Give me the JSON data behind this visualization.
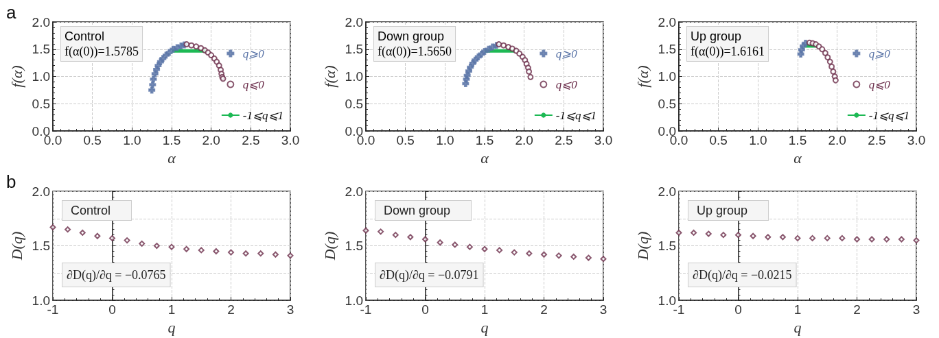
{
  "chart_data": [
    {
      "type": "scatter",
      "title": "a",
      "xlabel": "α",
      "ylabel": "f(α)",
      "annotations": [
        "Control",
        "f(α(0))=1.5785"
      ],
      "xlim": [
        0,
        3
      ],
      "ylim": [
        0,
        2
      ],
      "xticks": [
        {
          "value": 0,
          "label": "0.0"
        },
        {
          "value": 0.5,
          "label": "0.5"
        },
        {
          "value": 1,
          "label": "1.0"
        },
        {
          "value": 1.5,
          "label": "1.5"
        },
        {
          "value": 2,
          "label": "2.0"
        },
        {
          "value": 2.5,
          "label": "2.5"
        },
        {
          "value": 3,
          "label": "3.0"
        }
      ],
      "yticks": [
        {
          "value": 0,
          "label": "0.0"
        },
        {
          "value": 0.5,
          "label": "0.5"
        },
        {
          "value": 1,
          "label": "1.0"
        },
        {
          "value": 1.5,
          "label": "1.5"
        },
        {
          "value": 2,
          "label": "2.0"
        }
      ],
      "grid": true,
      "legend": "right",
      "series": [
        {
          "name": "q⩾0",
          "color": "#5b75a8",
          "marker": "cross",
          "x": [
            1.25,
            1.26,
            1.27,
            1.29,
            1.31,
            1.33,
            1.36,
            1.39,
            1.43,
            1.47,
            1.52,
            1.57,
            1.62,
            1.66
          ],
          "values": [
            0.75,
            0.85,
            0.95,
            1.05,
            1.13,
            1.2,
            1.27,
            1.33,
            1.39,
            1.44,
            1.5,
            1.53,
            1.56,
            1.58
          ]
        },
        {
          "name": "q⩽0",
          "color": "#6b2d4a",
          "marker": "circle",
          "x": [
            1.69,
            1.75,
            1.81,
            1.87,
            1.92,
            1.96,
            2.0,
            2.04,
            2.07,
            2.1,
            2.12,
            2.13,
            2.14,
            2.15
          ],
          "values": [
            1.59,
            1.57,
            1.55,
            1.52,
            1.48,
            1.44,
            1.39,
            1.33,
            1.27,
            1.2,
            1.12,
            1.05,
            0.99,
            0.96
          ]
        },
        {
          "name": "-1⩽q⩽1",
          "type": "line",
          "color": "#1db954",
          "marker": "none",
          "line_style": "solid",
          "x": [
            1.5,
            1.93
          ],
          "values": [
            1.47,
            1.47
          ]
        }
      ]
    },
    {
      "type": "scatter",
      "xlabel": "α",
      "ylabel": "f(α)",
      "annotations": [
        "Down group",
        "f(α(0))=1.5650"
      ],
      "xlim": [
        0,
        3
      ],
      "ylim": [
        0,
        2
      ],
      "xticks": [
        {
          "value": 0,
          "label": "0.0"
        },
        {
          "value": 0.5,
          "label": "0.5"
        },
        {
          "value": 1,
          "label": "1.0"
        },
        {
          "value": 1.5,
          "label": "1.5"
        },
        {
          "value": 2,
          "label": "2.0"
        },
        {
          "value": 2.5,
          "label": "2.5"
        },
        {
          "value": 3,
          "label": "3.0"
        }
      ],
      "yticks": [
        {
          "value": 0,
          "label": "0.0"
        },
        {
          "value": 0.5,
          "label": "0.5"
        },
        {
          "value": 1,
          "label": "1.0"
        },
        {
          "value": 1.5,
          "label": "1.5"
        },
        {
          "value": 2,
          "label": "2.0"
        }
      ],
      "grid": true,
      "legend": "right",
      "series": [
        {
          "name": "q⩾0",
          "color": "#5b75a8",
          "marker": "cross",
          "x": [
            1.26,
            1.27,
            1.28,
            1.3,
            1.32,
            1.35,
            1.38,
            1.42,
            1.46,
            1.5,
            1.55,
            1.6,
            1.65
          ],
          "values": [
            0.87,
            0.95,
            1.02,
            1.1,
            1.17,
            1.24,
            1.3,
            1.36,
            1.41,
            1.46,
            1.5,
            1.54,
            1.57
          ]
        },
        {
          "name": "q⩽0",
          "color": "#6b2d4a",
          "marker": "circle",
          "x": [
            1.68,
            1.74,
            1.8,
            1.85,
            1.9,
            1.94,
            1.98,
            2.01,
            2.03,
            2.05,
            2.06,
            2.08
          ],
          "values": [
            1.59,
            1.57,
            1.54,
            1.51,
            1.47,
            1.42,
            1.36,
            1.3,
            1.23,
            1.16,
            1.09,
            0.99
          ]
        },
        {
          "name": "-1⩽q⩽1",
          "type": "line",
          "color": "#1db954",
          "marker": "none",
          "line_style": "solid",
          "x": [
            1.5,
            1.88
          ],
          "values": [
            1.47,
            1.47
          ]
        }
      ]
    },
    {
      "type": "scatter",
      "xlabel": "α",
      "ylabel": "f(α)",
      "annotations": [
        "Up group",
        "f(α(0))=1.6161"
      ],
      "xlim": [
        0,
        3
      ],
      "ylim": [
        0,
        2
      ],
      "xticks": [
        {
          "value": 0,
          "label": "0.0"
        },
        {
          "value": 0.5,
          "label": "0.5"
        },
        {
          "value": 1,
          "label": "1.0"
        },
        {
          "value": 1.5,
          "label": "1.5"
        },
        {
          "value": 2,
          "label": "2.0"
        },
        {
          "value": 2.5,
          "label": "2.5"
        },
        {
          "value": 3,
          "label": "3.0"
        }
      ],
      "yticks": [
        {
          "value": 0,
          "label": "0.0"
        },
        {
          "value": 0.5,
          "label": "0.5"
        },
        {
          "value": 1,
          "label": "1.0"
        },
        {
          "value": 1.5,
          "label": "1.5"
        },
        {
          "value": 2,
          "label": "2.0"
        }
      ],
      "grid": true,
      "legend": "right",
      "series": [
        {
          "name": "q⩾0",
          "color": "#5b75a8",
          "marker": "cross",
          "x": [
            1.54,
            1.55,
            1.57,
            1.6
          ],
          "values": [
            1.41,
            1.49,
            1.56,
            1.61
          ]
        },
        {
          "name": "q⩽0",
          "color": "#6b2d4a",
          "marker": "circle",
          "x": [
            1.65,
            1.69,
            1.73,
            1.77,
            1.81,
            1.85,
            1.88,
            1.91,
            1.93,
            1.95,
            1.97,
            1.98
          ],
          "values": [
            1.62,
            1.61,
            1.59,
            1.55,
            1.5,
            1.43,
            1.35,
            1.27,
            1.18,
            1.09,
            1.0,
            0.93
          ]
        },
        {
          "name": "-1⩽q⩽1",
          "type": "line",
          "color": "#1db954",
          "marker": "none",
          "line_style": "solid",
          "x": [
            1.58,
            1.75
          ],
          "values": [
            1.56,
            1.56
          ]
        }
      ]
    },
    {
      "type": "scatter",
      "title": "b",
      "xlabel": "q",
      "ylabel": "D(q)",
      "annotations": [
        "Control",
        "∂D(q)/∂q = −0.0765"
      ],
      "xlim": [
        -1,
        3
      ],
      "ylim": [
        1,
        2
      ],
      "xticks": [
        -1,
        0,
        1,
        2,
        3
      ],
      "yticks": [
        {
          "value": 1,
          "label": "1.0"
        },
        {
          "value": 1.25,
          "label": null
        },
        {
          "value": 1.5,
          "label": "1.5"
        },
        {
          "value": 1.75,
          "label": null
        },
        {
          "value": 2,
          "label": "2.0"
        }
      ],
      "grid": true,
      "legend": false,
      "series": [
        {
          "color": "#6b2d4a",
          "marker": "diamond",
          "x": [
            -1,
            -0.75,
            -0.5,
            -0.25,
            0,
            0.25,
            0.5,
            0.75,
            1,
            1.25,
            1.5,
            1.75,
            2,
            2.25,
            2.5,
            2.75,
            3
          ],
          "values": [
            1.67,
            1.65,
            1.62,
            1.59,
            1.57,
            1.55,
            1.52,
            1.5,
            1.49,
            1.47,
            1.46,
            1.45,
            1.44,
            1.43,
            1.43,
            1.42,
            1.41
          ]
        }
      ]
    },
    {
      "type": "scatter",
      "xlabel": "q",
      "ylabel": "D(q)",
      "annotations": [
        "Down group",
        "∂D(q)/∂q = −0.0791"
      ],
      "xlim": [
        -1,
        3
      ],
      "ylim": [
        1,
        2
      ],
      "xticks": [
        -1,
        0,
        1,
        2,
        3
      ],
      "yticks": [
        {
          "value": 1,
          "label": "1.0"
        },
        {
          "value": 1.25,
          "label": null
        },
        {
          "value": 1.5,
          "label": "1.5"
        },
        {
          "value": 1.75,
          "label": null
        },
        {
          "value": 2,
          "label": "2.0"
        }
      ],
      "grid": true,
      "legend": false,
      "series": [
        {
          "color": "#6b2d4a",
          "marker": "diamond",
          "x": [
            -1,
            -0.75,
            -0.5,
            -0.25,
            0,
            0.25,
            0.5,
            0.75,
            1,
            1.25,
            1.5,
            1.75,
            2,
            2.25,
            2.5,
            2.75,
            3
          ],
          "values": [
            1.64,
            1.63,
            1.6,
            1.58,
            1.56,
            1.53,
            1.51,
            1.49,
            1.47,
            1.46,
            1.44,
            1.43,
            1.42,
            1.41,
            1.4,
            1.39,
            1.38
          ]
        }
      ]
    },
    {
      "type": "scatter",
      "xlabel": "q",
      "ylabel": "D(q)",
      "annotations": [
        "Up group",
        "∂D(q)/∂q = −0.0215"
      ],
      "xlim": [
        -1,
        3
      ],
      "ylim": [
        1,
        2
      ],
      "xticks": [
        -1,
        0,
        1,
        2,
        3
      ],
      "yticks": [
        {
          "value": 1,
          "label": "1.0"
        },
        {
          "value": 1.25,
          "label": null
        },
        {
          "value": 1.5,
          "label": "1.5"
        },
        {
          "value": 1.75,
          "label": null
        },
        {
          "value": 2,
          "label": "2.0"
        }
      ],
      "grid": true,
      "legend": false,
      "series": [
        {
          "color": "#6b2d4a",
          "marker": "diamond",
          "x": [
            -1,
            -0.75,
            -0.5,
            -0.25,
            0,
            0.25,
            0.5,
            0.75,
            1,
            1.25,
            1.5,
            1.75,
            2,
            2.25,
            2.5,
            2.75,
            3
          ],
          "values": [
            1.62,
            1.62,
            1.61,
            1.6,
            1.6,
            1.59,
            1.58,
            1.58,
            1.57,
            1.57,
            1.57,
            1.57,
            1.56,
            1.56,
            1.56,
            1.56,
            1.55
          ]
        }
      ]
    }
  ]
}
